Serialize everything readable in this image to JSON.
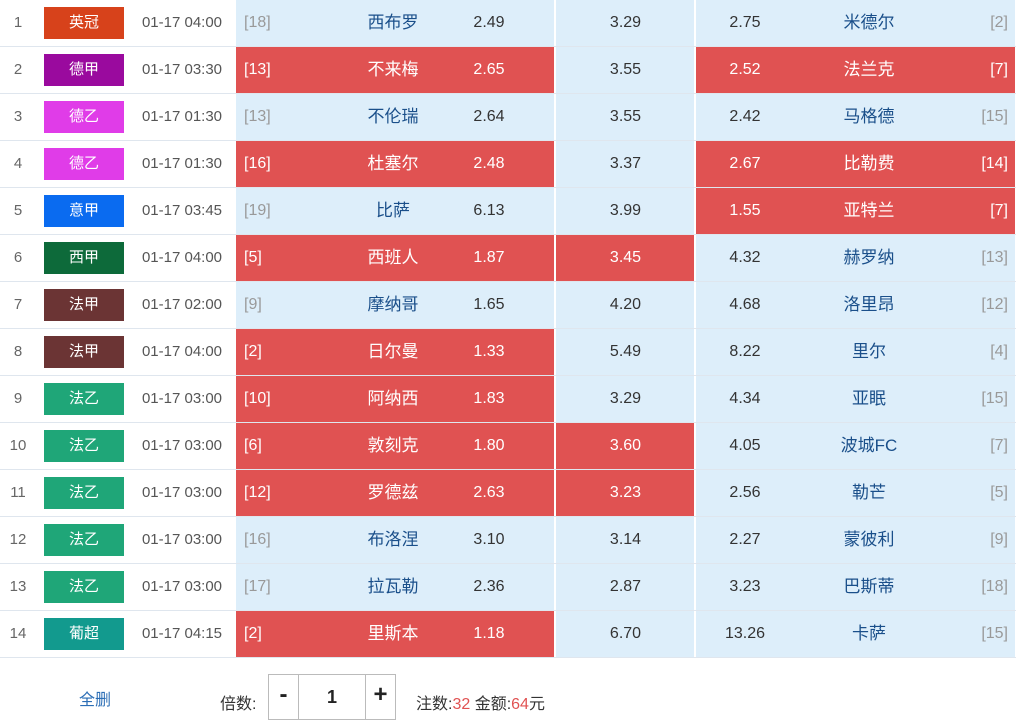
{
  "matches": [
    {
      "num": "1",
      "league": "英冠",
      "league_color": "#d7421b",
      "time": "01-17 04:00",
      "home_rank": "[18]",
      "home": "西布罗",
      "home_odds": "2.49",
      "draw_odds": "3.29",
      "away_odds": "2.75",
      "away": "米德尔",
      "away_rank": "[2]",
      "sel": {
        "home": false,
        "draw": false,
        "away": false
      }
    },
    {
      "num": "2",
      "league": "德甲",
      "league_color": "#9a0a9e",
      "time": "01-17 03:30",
      "home_rank": "[13]",
      "home": "不来梅",
      "home_odds": "2.65",
      "draw_odds": "3.55",
      "away_odds": "2.52",
      "away": "法兰克",
      "away_rank": "[7]",
      "sel": {
        "home": true,
        "draw": false,
        "away": true
      }
    },
    {
      "num": "3",
      "league": "德乙",
      "league_color": "#e03ce8",
      "time": "01-17 01:30",
      "home_rank": "[13]",
      "home": "不伦瑞",
      "home_odds": "2.64",
      "draw_odds": "3.55",
      "away_odds": "2.42",
      "away": "马格德",
      "away_rank": "[15]",
      "sel": {
        "home": false,
        "draw": false,
        "away": false
      }
    },
    {
      "num": "4",
      "league": "德乙",
      "league_color": "#e03ce8",
      "time": "01-17 01:30",
      "home_rank": "[16]",
      "home": "杜塞尔",
      "home_odds": "2.48",
      "draw_odds": "3.37",
      "away_odds": "2.67",
      "away": "比勒费",
      "away_rank": "[14]",
      "sel": {
        "home": true,
        "draw": false,
        "away": true
      }
    },
    {
      "num": "5",
      "league": "意甲",
      "league_color": "#0a6bf0",
      "time": "01-17 03:45",
      "home_rank": "[19]",
      "home": "比萨",
      "home_odds": "6.13",
      "draw_odds": "3.99",
      "away_odds": "1.55",
      "away": "亚特兰",
      "away_rank": "[7]",
      "sel": {
        "home": false,
        "draw": false,
        "away": true
      }
    },
    {
      "num": "6",
      "league": "西甲",
      "league_color": "#0d6a3a",
      "time": "01-17 04:00",
      "home_rank": "[5]",
      "home": "西班人",
      "home_odds": "1.87",
      "draw_odds": "3.45",
      "away_odds": "4.32",
      "away": "赫罗纳",
      "away_rank": "[13]",
      "sel": {
        "home": true,
        "draw": true,
        "away": false
      }
    },
    {
      "num": "7",
      "league": "法甲",
      "league_color": "#6b3434",
      "time": "01-17 02:00",
      "home_rank": "[9]",
      "home": "摩纳哥",
      "home_odds": "1.65",
      "draw_odds": "4.20",
      "away_odds": "4.68",
      "away": "洛里昂",
      "away_rank": "[12]",
      "sel": {
        "home": false,
        "draw": false,
        "away": false
      }
    },
    {
      "num": "8",
      "league": "法甲",
      "league_color": "#6b3434",
      "time": "01-17 04:00",
      "home_rank": "[2]",
      "home": "日尔曼",
      "home_odds": "1.33",
      "draw_odds": "5.49",
      "away_odds": "8.22",
      "away": "里尔",
      "away_rank": "[4]",
      "sel": {
        "home": true,
        "draw": false,
        "away": false
      }
    },
    {
      "num": "9",
      "league": "法乙",
      "league_color": "#1fa678",
      "time": "01-17 03:00",
      "home_rank": "[10]",
      "home": "阿纳西",
      "home_odds": "1.83",
      "draw_odds": "3.29",
      "away_odds": "4.34",
      "away": "亚眠",
      "away_rank": "[15]",
      "sel": {
        "home": true,
        "draw": false,
        "away": false
      }
    },
    {
      "num": "10",
      "league": "法乙",
      "league_color": "#1fa678",
      "time": "01-17 03:00",
      "home_rank": "[6]",
      "home": "敦刻克",
      "home_odds": "1.80",
      "draw_odds": "3.60",
      "away_odds": "4.05",
      "away": "波城FC",
      "away_rank": "[7]",
      "sel": {
        "home": true,
        "draw": true,
        "away": false
      }
    },
    {
      "num": "11",
      "league": "法乙",
      "league_color": "#1fa678",
      "time": "01-17 03:00",
      "home_rank": "[12]",
      "home": "罗德兹",
      "home_odds": "2.63",
      "draw_odds": "3.23",
      "away_odds": "2.56",
      "away": "勒芒",
      "away_rank": "[5]",
      "sel": {
        "home": true,
        "draw": true,
        "away": false
      }
    },
    {
      "num": "12",
      "league": "法乙",
      "league_color": "#1fa678",
      "time": "01-17 03:00",
      "home_rank": "[16]",
      "home": "布洛涅",
      "home_odds": "3.10",
      "draw_odds": "3.14",
      "away_odds": "2.27",
      "away": "蒙彼利",
      "away_rank": "[9]",
      "sel": {
        "home": false,
        "draw": false,
        "away": false
      }
    },
    {
      "num": "13",
      "league": "法乙",
      "league_color": "#1fa678",
      "time": "01-17 03:00",
      "home_rank": "[17]",
      "home": "拉瓦勒",
      "home_odds": "2.36",
      "draw_odds": "2.87",
      "away_odds": "3.23",
      "away": "巴斯蒂",
      "away_rank": "[18]",
      "sel": {
        "home": false,
        "draw": false,
        "away": false
      }
    },
    {
      "num": "14",
      "league": "葡超",
      "league_color": "#129a8e",
      "time": "01-17 04:15",
      "home_rank": "[2]",
      "home": "里斯本",
      "home_odds": "1.18",
      "draw_odds": "6.70",
      "away_odds": "13.26",
      "away": "卡萨",
      "away_rank": "[15]",
      "sel": {
        "home": true,
        "draw": false,
        "away": false
      }
    }
  ],
  "footer": {
    "clear_label": "全删",
    "multiplier_label": "倍数:",
    "minus": "-",
    "plus": "+",
    "multiplier_value": "1",
    "bets_label": "注数:",
    "bets_value": "32",
    "amount_label": "金额:",
    "amount_value": "64",
    "currency": "元"
  },
  "colors": {
    "selected": "#e05252",
    "unselected": "#ddeefa"
  }
}
